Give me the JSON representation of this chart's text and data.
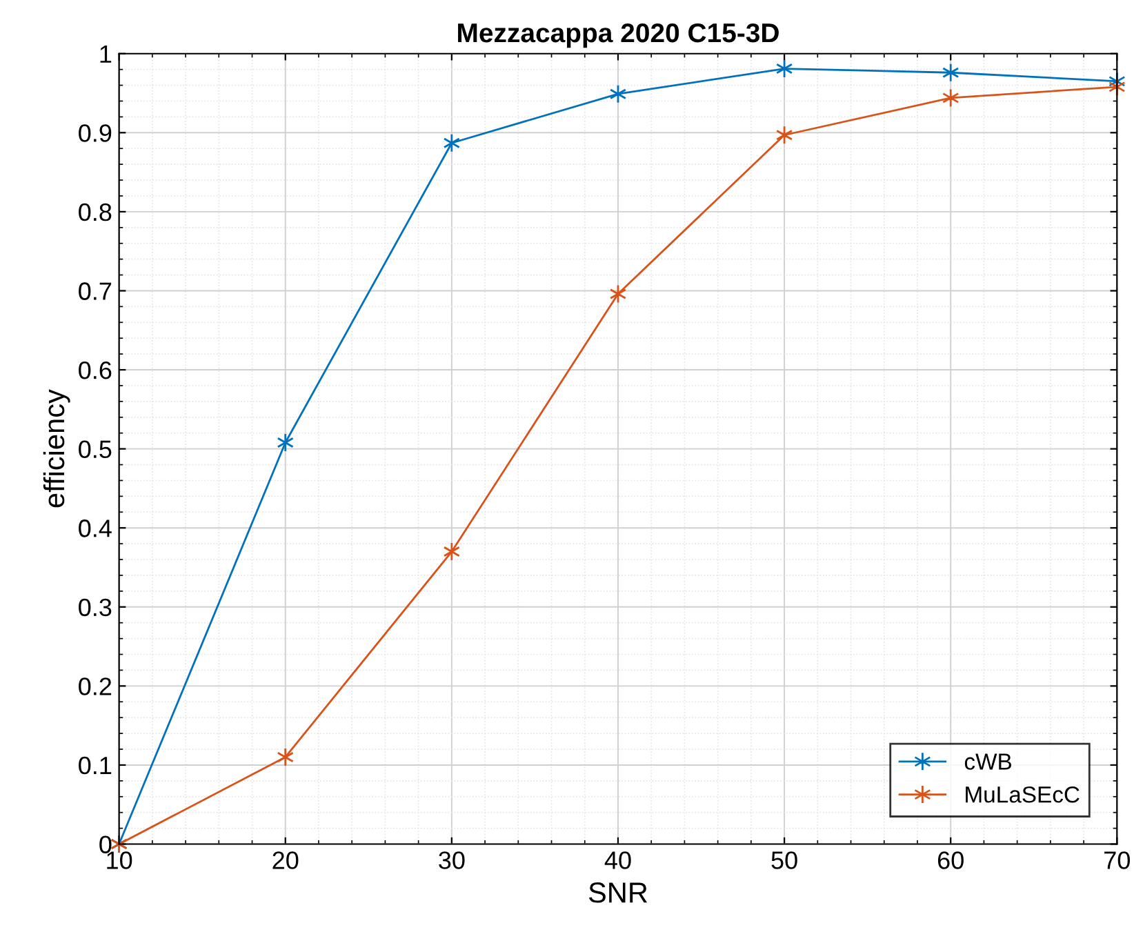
{
  "chart_data": {
    "type": "line",
    "title": "Mezzacappa 2020 C15-3D",
    "xlabel": "SNR",
    "ylabel": "efficiency",
    "x": [
      10,
      20,
      30,
      40,
      50,
      60,
      70
    ],
    "series": [
      {
        "name": "cWB",
        "color": "#0072bd",
        "values": [
          0,
          0.508,
          0.887,
          0.949,
          0.981,
          0.976,
          0.965
        ]
      },
      {
        "name": "MuLaSEcC",
        "color": "#d95319",
        "values": [
          0,
          0.11,
          0.37,
          0.696,
          0.897,
          0.944,
          0.958
        ]
      }
    ],
    "xlim": [
      10,
      70
    ],
    "xticks": [
      10,
      20,
      30,
      40,
      50,
      60,
      70
    ],
    "ylim": [
      0,
      1
    ],
    "yticks": [
      0,
      0.1,
      0.2,
      0.3,
      0.4,
      0.5,
      0.6,
      0.7,
      0.8,
      0.9,
      1
    ],
    "grid": true,
    "legend": "bottom right",
    "marker": "cross",
    "line_style": "solid"
  }
}
